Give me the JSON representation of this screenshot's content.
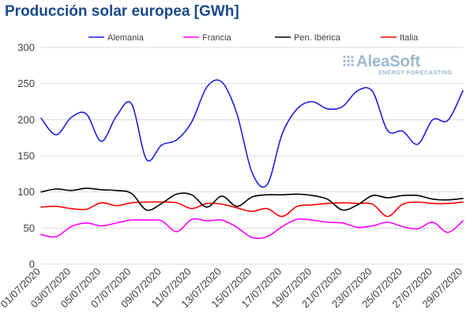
{
  "chart_data": {
    "type": "line",
    "title": "Producción solar europea [GWh]",
    "ylim": [
      0,
      300
    ],
    "yticks": [
      0,
      50,
      100,
      150,
      200,
      250,
      300
    ],
    "grid": "horizontal",
    "legend_position": "top",
    "categories": [
      "01/07/2020",
      "02/07/2020",
      "03/07/2020",
      "04/07/2020",
      "05/07/2020",
      "06/07/2020",
      "07/07/2020",
      "08/07/2020",
      "09/07/2020",
      "10/07/2020",
      "11/07/2020",
      "12/07/2020",
      "13/07/2020",
      "14/07/2020",
      "15/07/2020",
      "16/07/2020",
      "17/07/2020",
      "18/07/2020",
      "19/07/2020",
      "20/07/2020",
      "21/07/2020",
      "22/07/2020",
      "23/07/2020",
      "24/07/2020",
      "25/07/2020",
      "26/07/2020",
      "27/07/2020",
      "28/07/2020",
      "29/07/2020"
    ],
    "xtick_labels": [
      "01/07/2020",
      "03/07/2020",
      "05/07/2020",
      "07/07/2020",
      "09/07/2020",
      "11/07/2020",
      "13/07/2020",
      "15/07/2020",
      "17/07/2020",
      "19/07/2020",
      "21/07/2020",
      "23/07/2020",
      "25/07/2020",
      "27/07/2020",
      "29/07/2020"
    ],
    "series": [
      {
        "name": "Alemania",
        "color": "#1f1fe0",
        "values": [
          202,
          179,
          203,
          208,
          170,
          205,
          222,
          145,
          165,
          172,
          197,
          245,
          252,
          208,
          127,
          110,
          180,
          215,
          225,
          215,
          218,
          240,
          239,
          185,
          184,
          166,
          200,
          199,
          240
        ]
      },
      {
        "name": "Francia",
        "color": "#ff00ff",
        "values": [
          41,
          38,
          52,
          57,
          53,
          57,
          61,
          61,
          60,
          45,
          62,
          60,
          61,
          51,
          37,
          38,
          52,
          62,
          61,
          58,
          57,
          51,
          53,
          58,
          52,
          49,
          58,
          44,
          60
        ]
      },
      {
        "name": "Pen. Ibérica",
        "color": "#000000",
        "values": [
          100,
          104,
          102,
          105,
          103,
          102,
          98,
          75,
          84,
          97,
          96,
          79,
          94,
          80,
          93,
          96,
          96,
          97,
          95,
          90,
          75,
          82,
          95,
          92,
          95,
          95,
          90,
          89,
          91
        ]
      },
      {
        "name": "Italia",
        "color": "#ff0000",
        "values": [
          79,
          80,
          77,
          76,
          85,
          81,
          85,
          86,
          86,
          85,
          77,
          84,
          83,
          78,
          73,
          77,
          66,
          80,
          82,
          84,
          85,
          84,
          83,
          66,
          83,
          86,
          84,
          84,
          86
        ]
      }
    ]
  },
  "watermark": {
    "brand": "AleaSoft",
    "tagline": "ENERGY FORECASTING"
  }
}
